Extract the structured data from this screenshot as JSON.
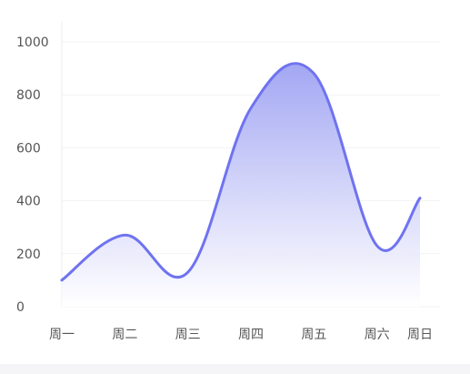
{
  "chart_data": {
    "type": "area",
    "categories": [
      "周一",
      "周二",
      "周三",
      "周四",
      "周五",
      "周六",
      "周日"
    ],
    "values": [
      100,
      270,
      130,
      750,
      880,
      230,
      410
    ],
    "ylim": [
      0,
      1000
    ],
    "yticks": [
      0,
      200,
      400,
      600,
      800,
      1000
    ],
    "grid": true,
    "smooth": true,
    "colors": {
      "line": "#6f73f0",
      "fill_top": "#9ea2f2",
      "fill_bottom": "#ffffff",
      "grid": "#f2f2f2",
      "text": "#555555"
    }
  }
}
